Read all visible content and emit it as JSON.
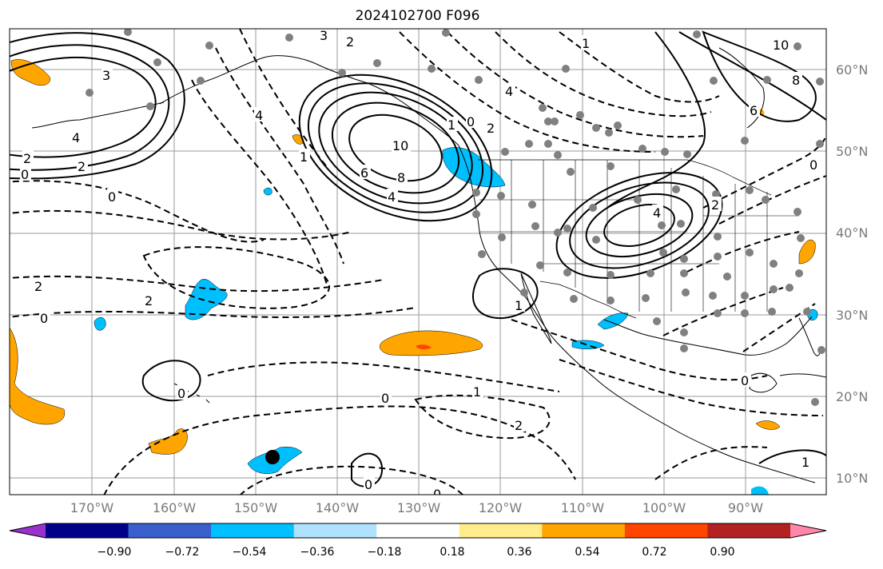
{
  "title": "2024102700 F096",
  "lat_labels": [
    "60°N",
    "50°N",
    "40°N",
    "30°N",
    "20°N",
    "10°N"
  ],
  "lon_labels": [
    "170°W",
    "160°W",
    "150°W",
    "140°W",
    "130°W",
    "120°W",
    "110°W",
    "100°W",
    "90°W"
  ],
  "colorbar": {
    "colors": [
      "#9932cc",
      "#00008b",
      "#3a5fcd",
      "#00bfff",
      "#b0e2ff",
      "#ffffff",
      "#ffec8b",
      "#ffa500",
      "#ff4500",
      "#b22222",
      "#ff88aa"
    ],
    "tick_labels": [
      "−0.90",
      "−0.72",
      "−0.54",
      "−0.36",
      "−0.18",
      "0.18",
      "0.36",
      "0.54",
      "0.72",
      "0.90"
    ]
  },
  "contour_labels": [
    "3",
    "2",
    "4",
    "2",
    "0",
    "0",
    "2",
    "0",
    "3",
    "2",
    "4",
    "6",
    "8",
    "10",
    "4",
    "6",
    "8",
    "10",
    "2",
    "4",
    "1",
    "0",
    "2",
    "4",
    "1",
    "2",
    "0",
    "1",
    "0",
    "1",
    "2",
    "0",
    "0",
    "1",
    "0",
    "0",
    "1"
  ]
}
